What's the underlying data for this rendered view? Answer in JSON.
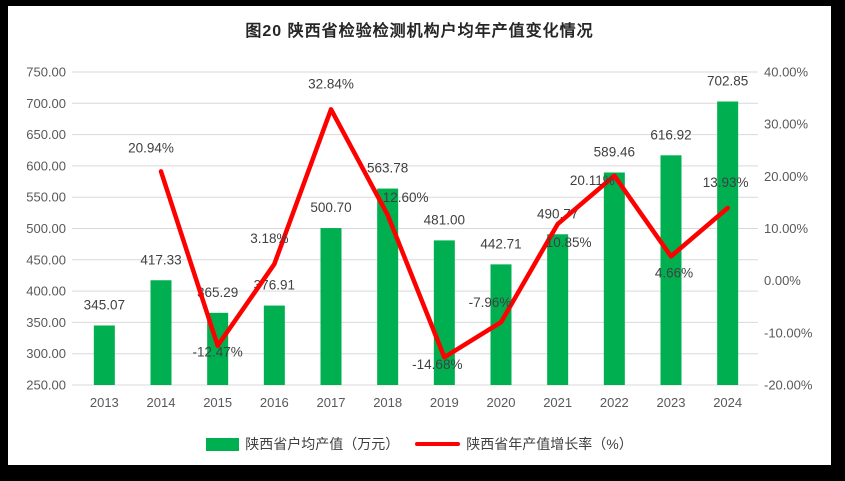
{
  "title": "图20  陕西省检验检测机构户均年产值变化情况",
  "colors": {
    "bar": "#00B050",
    "line": "#FF0000",
    "grid": "#D9D9D9",
    "axis_text": "#595959",
    "label_text": "#404040",
    "title_text": "#262626",
    "border": "#000000",
    "background": "#FFFFFF"
  },
  "chart_data": {
    "type": "bar+line combo",
    "title": "图20  陕西省检验检测机构户均年产值变化情况",
    "categories": [
      "2013",
      "2014",
      "2015",
      "2016",
      "2017",
      "2018",
      "2019",
      "2020",
      "2021",
      "2022",
      "2023",
      "2024"
    ],
    "series": [
      {
        "name": "陕西省户均产值（万元）",
        "type": "bar",
        "axis": "left",
        "color": "#00B050",
        "values": [
          345.07,
          417.33,
          365.29,
          376.91,
          500.7,
          563.78,
          481.0,
          442.71,
          490.77,
          589.46,
          616.92,
          702.85
        ],
        "labels": [
          "345.07",
          "417.33",
          "365.29",
          "376.91",
          "500.70",
          "563.78",
          "481.00",
          "442.71",
          "490.77",
          "589.46",
          "616.92",
          "702.85"
        ]
      },
      {
        "name": "陕西省年产值增长率（%）",
        "type": "line",
        "axis": "right",
        "color": "#FF0000",
        "values": [
          null,
          20.94,
          -12.47,
          3.18,
          32.84,
          12.6,
          -14.68,
          -7.96,
          10.85,
          20.11,
          4.66,
          13.93
        ],
        "labels": [
          null,
          "20.94%",
          "-12.47%",
          "3.18%",
          "32.84%",
          "12.60%",
          "-14.68%",
          "-7.96%",
          "10.85%",
          "20.11%",
          "4.66%",
          "13.93%"
        ]
      }
    ],
    "left_axis": {
      "min": 250,
      "max": 750,
      "step": 50,
      "tick_labels": [
        "750.00",
        "700.00",
        "650.00",
        "600.00",
        "550.00",
        "500.00",
        "450.00",
        "400.00",
        "350.00",
        "300.00",
        "250.00"
      ]
    },
    "right_axis": {
      "min": -20,
      "max": 40,
      "step": 10,
      "tick_labels": [
        "40.00%",
        "30.00%",
        "20.00%",
        "10.00%",
        "0.00%",
        "-10.00%",
        "-20.00%"
      ]
    },
    "grid": true,
    "legend_position": "bottom"
  },
  "legend": [
    {
      "label": "陕西省户均产值（万元）",
      "swatch": "bar",
      "color": "#00B050"
    },
    {
      "label": "陕西省年产值增长率（%）",
      "swatch": "line",
      "color": "#FF0000"
    }
  ]
}
